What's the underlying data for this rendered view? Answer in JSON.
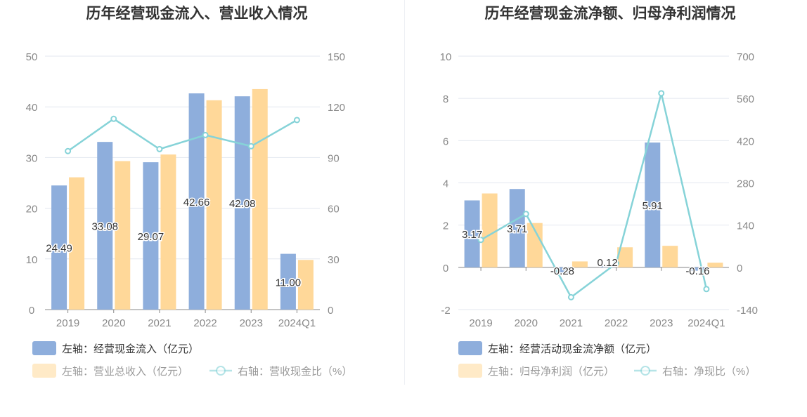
{
  "chart_data": [
    {
      "type": "bar",
      "title": "历年经营现金流入、营业收入情况",
      "categories": [
        "2019",
        "2020",
        "2021",
        "2022",
        "2023",
        "2024Q1"
      ],
      "left_axis": {
        "ticks": [
          "0",
          "10",
          "20",
          "30",
          "40",
          "50"
        ],
        "range": [
          0,
          50
        ]
      },
      "right_axis": {
        "ticks": [
          "0",
          "30",
          "60",
          "90",
          "120",
          "150"
        ],
        "range": [
          0,
          150
        ]
      },
      "series": [
        {
          "name": "左轴：经营现金流入（亿元）",
          "axis": "left",
          "kind": "bar",
          "color": "#8eaedc",
          "values": [
            24.49,
            33.08,
            29.07,
            42.66,
            42.08,
            11.0
          ],
          "labels": [
            "24.49",
            "33.08",
            "29.07",
            "42.66",
            "42.08",
            "11.00"
          ]
        },
        {
          "name": "左轴：营业总收入（亿元）",
          "axis": "left",
          "kind": "bar",
          "color": "#ffd899",
          "values": [
            26.1,
            29.3,
            30.6,
            41.3,
            43.5,
            9.8
          ]
        },
        {
          "name": "右轴：营收现金比（%）",
          "axis": "right",
          "kind": "line",
          "color": "#86d3d8",
          "values": [
            93.8,
            112.9,
            95.0,
            103.3,
            96.7,
            112.2
          ]
        }
      ],
      "legend": "bottom-left"
    },
    {
      "type": "bar",
      "title": "历年经营现金流净额、归母净利润情况",
      "categories": [
        "2019",
        "2020",
        "2021",
        "2022",
        "2023",
        "2024Q1"
      ],
      "left_axis": {
        "ticks": [
          "-2",
          "0",
          "2",
          "4",
          "6",
          "8",
          "10"
        ],
        "range": [
          -2,
          10
        ]
      },
      "right_axis": {
        "ticks": [
          "-140",
          "0",
          "140",
          "280",
          "420",
          "560",
          "700"
        ],
        "range": [
          -140,
          700
        ]
      },
      "series": [
        {
          "name": "左轴：经营活动现金流净额（亿元）",
          "axis": "left",
          "kind": "bar",
          "color": "#8eaedc",
          "values": [
            3.17,
            3.71,
            -0.28,
            0.12,
            5.91,
            -0.16
          ],
          "labels": [
            "3.17",
            "3.71",
            "-0.28",
            "0.12",
            "5.91",
            "-0.16"
          ]
        },
        {
          "name": "左轴：归母净利润（亿元）",
          "axis": "left",
          "kind": "bar",
          "color": "#ffd899",
          "values": [
            3.5,
            2.1,
            0.28,
            0.95,
            1.02,
            0.22
          ]
        },
        {
          "name": "右轴：净现比（%）",
          "axis": "right",
          "kind": "line",
          "color": "#86d3d8",
          "values": [
            91,
            177,
            -99,
            13,
            577,
            -72
          ]
        }
      ],
      "legend": "bottom-left"
    }
  ]
}
